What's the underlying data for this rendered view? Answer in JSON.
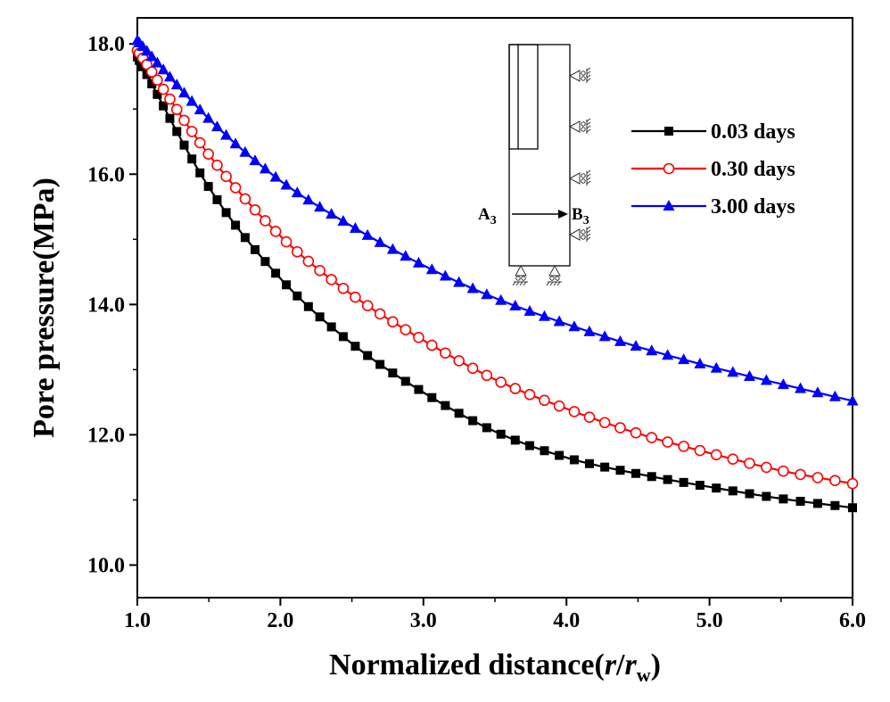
{
  "chart_data": {
    "type": "line",
    "title": "",
    "xlabel": "Normalized distance(",
    "xlabel_var1": "r",
    "xlabel_slash": "/",
    "xlabel_var2": "r",
    "xlabel_var2_sub": "w",
    "xlabel_close": ")",
    "ylabel": "Pore pressure(MPa)",
    "xlim": [
      1.0,
      6.0
    ],
    "ylim": [
      9.5,
      18.4
    ],
    "xticks": [
      1.0,
      2.0,
      3.0,
      4.0,
      5.0,
      6.0
    ],
    "xtick_labels": [
      "1.0",
      "2.0",
      "3.0",
      "4.0",
      "5.0",
      "6.0"
    ],
    "yticks": [
      10.0,
      12.0,
      14.0,
      16.0,
      18.0
    ],
    "ytick_labels": [
      "10.0",
      "12.0",
      "14.0",
      "16.0",
      "18.0"
    ],
    "legend_position": "top-right",
    "series": [
      {
        "name": "0.03 days",
        "color": "#000000",
        "marker": "square",
        "x": [
          1.0,
          1.5,
          2.0,
          2.5,
          3.0,
          3.5,
          4.0,
          4.5,
          5.0,
          5.5,
          6.0
        ],
        "values": [
          17.8,
          15.8,
          14.4,
          13.4,
          12.65,
          12.05,
          11.65,
          11.4,
          11.2,
          11.02,
          10.88
        ]
      },
      {
        "name": "0.30 days",
        "color": "#ff0000",
        "marker": "circle-open",
        "x": [
          1.0,
          1.5,
          2.0,
          2.5,
          3.0,
          3.5,
          4.0,
          4.5,
          5.0,
          5.5,
          6.0
        ],
        "values": [
          17.9,
          16.3,
          15.05,
          14.15,
          13.45,
          12.85,
          12.4,
          12.02,
          11.72,
          11.45,
          11.25
        ]
      },
      {
        "name": "3.00 days",
        "color": "#0000ff",
        "marker": "triangle",
        "x": [
          1.0,
          1.5,
          2.0,
          2.5,
          3.0,
          3.5,
          4.0,
          4.5,
          5.0,
          5.5,
          6.0
        ],
        "values": [
          18.05,
          16.85,
          15.9,
          15.2,
          14.6,
          14.1,
          13.7,
          13.35,
          13.05,
          12.78,
          12.52
        ]
      }
    ],
    "inset": {
      "label_a": "A",
      "label_a_sub": "3",
      "label_b": "B",
      "label_b_sub": "3"
    }
  }
}
